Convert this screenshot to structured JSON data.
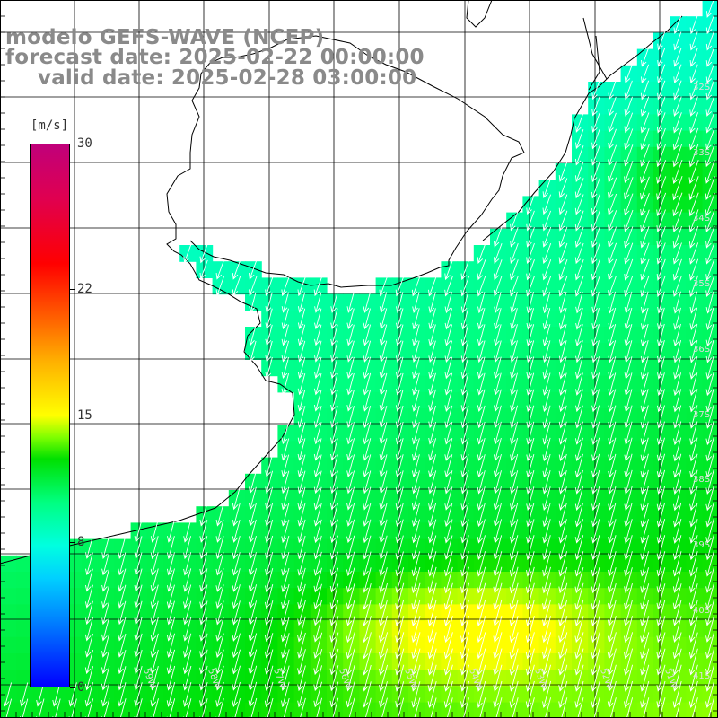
{
  "title": {
    "model": "modelo GEFS-WAVE (NCEP)",
    "forecast": "forecast date: 2025-02-22 00:00:00",
    "valid": "valid date: 2025-02-28 03:00:00"
  },
  "colorbar": {
    "unit": "[m/s]",
    "ticks": [
      {
        "label": "30",
        "value": 30
      },
      {
        "label": "22",
        "value": 22
      },
      {
        "label": "15",
        "value": 15
      },
      {
        "label": "8",
        "value": 8
      },
      {
        "label": "0",
        "value": 0
      }
    ],
    "min": 0,
    "max": 30
  },
  "map": {
    "lat_labels": [
      "32S",
      "33S",
      "34S",
      "35S",
      "36S",
      "37S",
      "38S",
      "39S",
      "40S",
      "41S"
    ],
    "lon_labels": [
      "59W",
      "58W",
      "57W",
      "56W",
      "55W",
      "54W",
      "53W",
      "52W",
      "51W"
    ],
    "land_color": "#ffffff",
    "coast_color": "#000000",
    "grid_color": "#000000",
    "arrow_color": "#ffffff"
  }
}
